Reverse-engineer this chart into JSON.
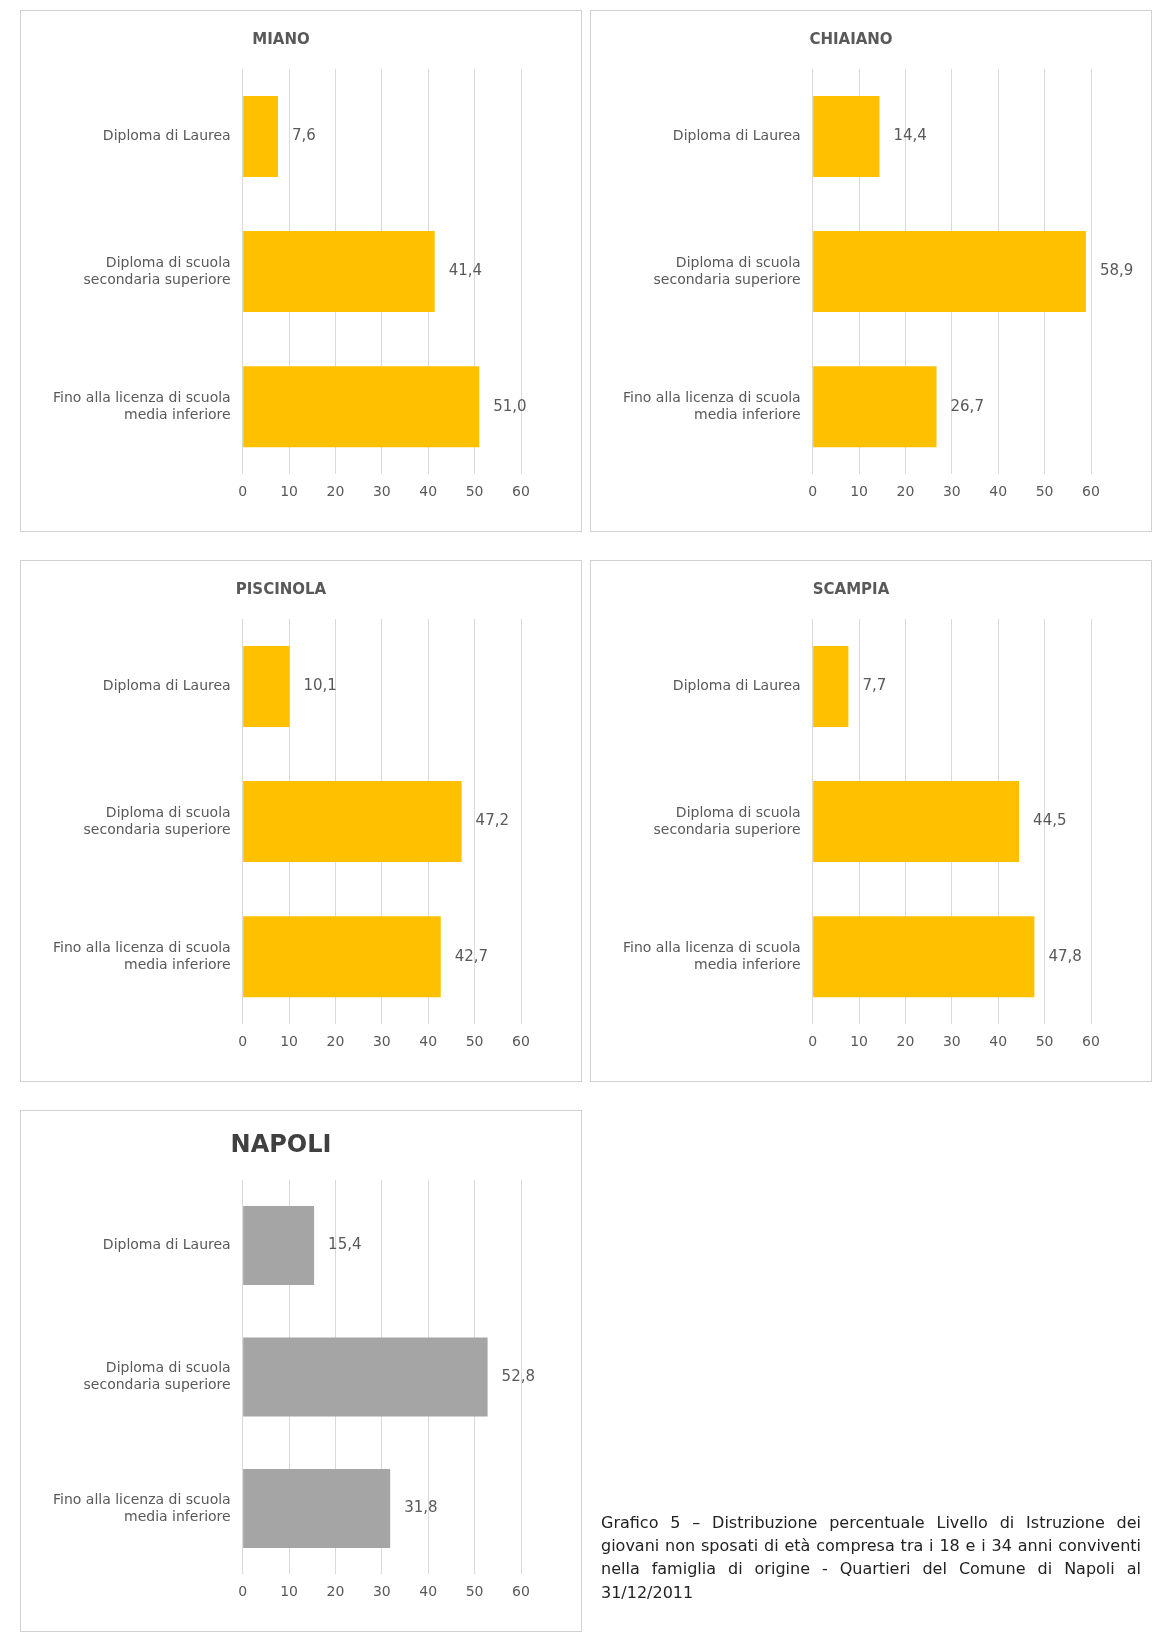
{
  "chart_data": [
    {
      "type": "bar",
      "orientation": "horizontal",
      "title": "MIANO",
      "categories": [
        "Diploma di Laurea",
        "Diploma di scuola secondaria superiore",
        "Fino alla licenza di scuola media inferiore"
      ],
      "values": [
        7.6,
        41.4,
        51.0
      ],
      "value_labels": [
        "7,6",
        "41,4",
        "51,0"
      ],
      "color": "#ffc000",
      "xlim": [
        0,
        60
      ],
      "xticks": [
        0,
        10,
        20,
        30,
        40,
        50,
        60
      ],
      "grid": "x"
    },
    {
      "type": "bar",
      "orientation": "horizontal",
      "title": "CHIAIANO",
      "categories": [
        "Diploma di Laurea",
        "Diploma di scuola secondaria superiore",
        "Fino alla licenza di scuola media inferiore"
      ],
      "values": [
        14.4,
        58.9,
        26.7
      ],
      "value_labels": [
        "14,4",
        "58,9",
        "26,7"
      ],
      "color": "#ffc000",
      "xlim": [
        0,
        60
      ],
      "xticks": [
        0,
        10,
        20,
        30,
        40,
        50,
        60
      ],
      "grid": "x"
    },
    {
      "type": "bar",
      "orientation": "horizontal",
      "title": "PISCINOLA",
      "categories": [
        "Diploma di Laurea",
        "Diploma di scuola secondaria superiore",
        "Fino alla licenza di scuola media inferiore"
      ],
      "values": [
        10.1,
        47.2,
        42.7
      ],
      "value_labels": [
        "10,1",
        "47,2",
        "42,7"
      ],
      "color": "#ffc000",
      "xlim": [
        0,
        60
      ],
      "xticks": [
        0,
        10,
        20,
        30,
        40,
        50,
        60
      ],
      "grid": "x"
    },
    {
      "type": "bar",
      "orientation": "horizontal",
      "title": "SCAMPIA",
      "categories": [
        "Diploma di Laurea",
        "Diploma di scuola secondaria superiore",
        "Fino alla licenza di scuola media inferiore"
      ],
      "values": [
        7.7,
        44.5,
        47.8
      ],
      "value_labels": [
        "7,7",
        "44,5",
        "47,8"
      ],
      "color": "#ffc000",
      "xlim": [
        0,
        60
      ],
      "xticks": [
        0,
        10,
        20,
        30,
        40,
        50,
        60
      ],
      "grid": "x"
    },
    {
      "type": "bar",
      "orientation": "horizontal",
      "title": "NAPOLI",
      "categories": [
        "Diploma di Laurea",
        "Diploma di scuola secondaria superiore",
        "Fino alla licenza di scuola media inferiore"
      ],
      "values": [
        15.4,
        52.8,
        31.8
      ],
      "value_labels": [
        "15,4",
        "52,8",
        "31,8"
      ],
      "color": "#a5a5a5",
      "xlim": [
        0,
        60
      ],
      "xticks": [
        0,
        10,
        20,
        30,
        40,
        50,
        60
      ],
      "grid": "x",
      "annotations": [
        "Grafico 5 – Distribuzione percentuale Livello di Istruzione dei giovani non sposati di età compresa tra i 18 e i 34 anni conviventi nella famiglia di origine - Quartieri del Comune di Napoli al 31/12/2011"
      ]
    }
  ]
}
